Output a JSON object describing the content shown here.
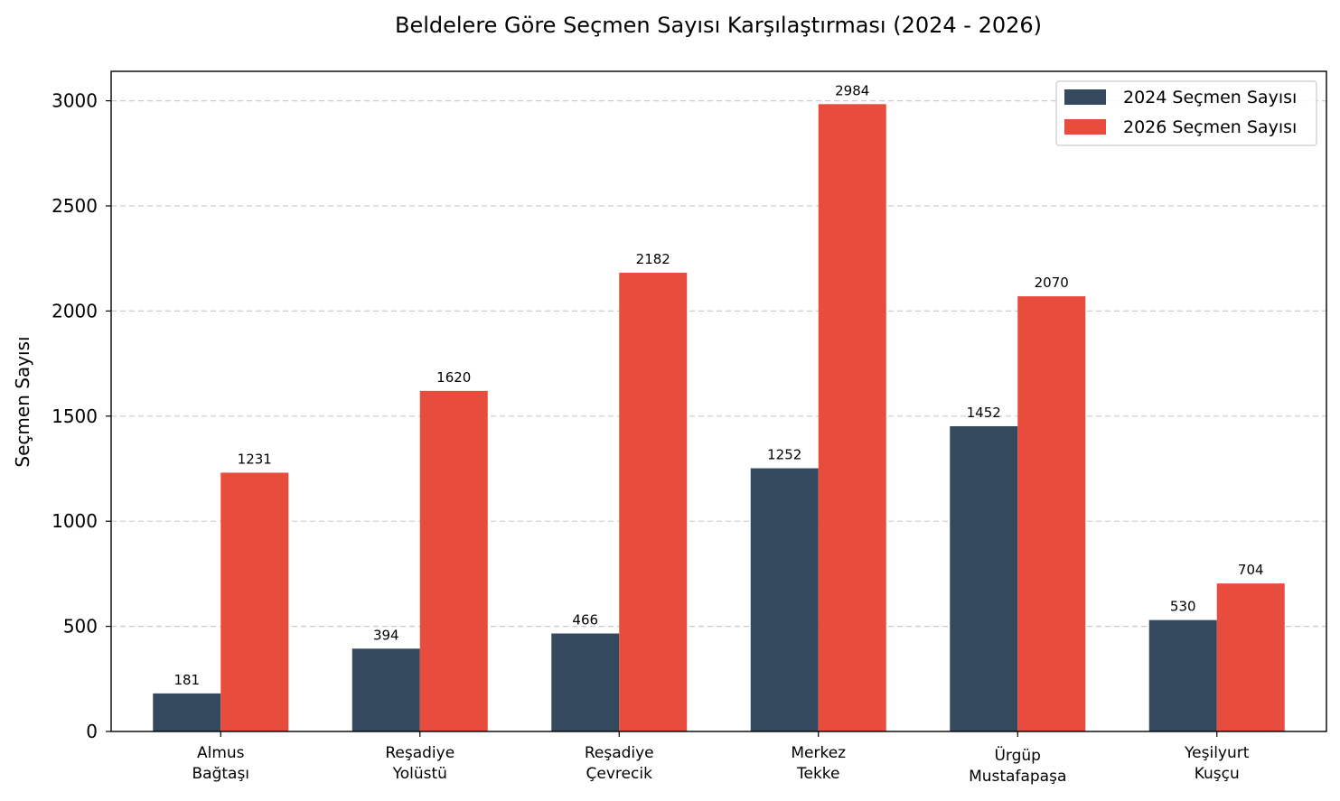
{
  "chart_data": {
    "type": "bar",
    "title": "Beldelere Göre Seçmen Sayısı Karşılaştırması (2024 - 2026)",
    "xlabel": "",
    "ylabel": "Seçmen Sayısı",
    "ylim": [
      0,
      3140
    ],
    "yticks": [
      0,
      500,
      1000,
      1500,
      2000,
      2500,
      3000
    ],
    "grid": "y-dashed",
    "legend_position": "top-right",
    "categories": [
      [
        "Almus",
        "Bağtaşı"
      ],
      [
        "Reşadiye",
        "Yolüstü"
      ],
      [
        "Reşadiye",
        "Çevrecik"
      ],
      [
        "Merkez",
        "Tekke"
      ],
      [
        "Ürgüp",
        "Mustafapaşa"
      ],
      [
        "Yeşilyurt",
        "Kuşçu"
      ]
    ],
    "series": [
      {
        "name": "2024 Seçmen Sayısı",
        "color": "#34495e",
        "values": [
          181,
          394,
          466,
          1252,
          1452,
          530
        ]
      },
      {
        "name": "2026 Seçmen Sayısı",
        "color": "#e74c3c",
        "values": [
          1231,
          1620,
          2182,
          2984,
          2070,
          704
        ]
      }
    ]
  }
}
